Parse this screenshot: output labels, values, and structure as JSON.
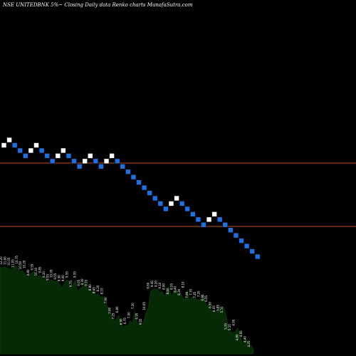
{
  "header": {
    "title": "NSE UNITEDBNK 5%~ Closing Daily data Renko charts MunafaSutra.com"
  },
  "chart_data": {
    "type": "renko",
    "y_scale": "log",
    "price_range": [
      6.0,
      11.5
    ],
    "colors": {
      "up_brick": "#ffffff",
      "down_brick": "#1e6fe0",
      "brick_border": "#000000",
      "level_line": "#c0521f",
      "volume_fill": "#062906",
      "volume_edge": "#0d4a0d",
      "background": "#000000"
    },
    "bricks": [
      {
        "dir": "up",
        "close": 10.85
      },
      {
        "dir": "up",
        "close": 11.4
      },
      {
        "dir": "down",
        "close": 10.85
      },
      {
        "dir": "down",
        "close": 10.3
      },
      {
        "dir": "down",
        "close": 9.8
      },
      {
        "dir": "up",
        "close": 10.3
      },
      {
        "dir": "up",
        "close": 10.85
      },
      {
        "dir": "down",
        "close": 10.3
      },
      {
        "dir": "down",
        "close": 9.8
      },
      {
        "dir": "down",
        "close": 9.3
      },
      {
        "dir": "up",
        "close": 9.8
      },
      {
        "dir": "up",
        "close": 10.3
      },
      {
        "dir": "down",
        "close": 9.8
      },
      {
        "dir": "down",
        "close": 9.3
      },
      {
        "dir": "down",
        "close": 8.85
      },
      {
        "dir": "up",
        "close": 9.3
      },
      {
        "dir": "up",
        "close": 9.8
      },
      {
        "dir": "down",
        "close": 9.3
      },
      {
        "dir": "down",
        "close": 8.85
      },
      {
        "dir": "up",
        "close": 9.3
      },
      {
        "dir": "up",
        "close": 9.8
      },
      {
        "dir": "down",
        "close": 9.3
      },
      {
        "dir": "down",
        "close": 8.85
      },
      {
        "dir": "down",
        "close": 8.4
      },
      {
        "dir": "down",
        "close": 8.0
      },
      {
        "dir": "down",
        "close": 7.6
      },
      {
        "dir": "down",
        "close": 7.2
      },
      {
        "dir": "down",
        "close": 6.85
      },
      {
        "dir": "down",
        "close": 6.5
      },
      {
        "dir": "down",
        "close": 6.2
      },
      {
        "dir": "down",
        "close": 5.9
      },
      {
        "dir": "up",
        "close": 6.2
      },
      {
        "dir": "up",
        "close": 6.5
      },
      {
        "dir": "down",
        "close": 6.2
      },
      {
        "dir": "down",
        "close": 5.9
      },
      {
        "dir": "down",
        "close": 5.6
      },
      {
        "dir": "down",
        "close": 5.35
      },
      {
        "dir": "down",
        "close": 5.1
      },
      {
        "dir": "up",
        "close": 5.35
      },
      {
        "dir": "up",
        "close": 5.6
      },
      {
        "dir": "down",
        "close": 5.35
      },
      {
        "dir": "down",
        "close": 5.1
      },
      {
        "dir": "down",
        "close": 4.85
      },
      {
        "dir": "down",
        "close": 4.6
      },
      {
        "dir": "down",
        "close": 4.4
      },
      {
        "dir": "down",
        "close": 4.2
      },
      {
        "dir": "down",
        "close": 4.0
      },
      {
        "dir": "down",
        "close": 3.8
      }
    ],
    "horizontal_lines": [
      {
        "price": 9.4
      },
      {
        "price": 5.8
      }
    ],
    "volume_series": [
      0.94,
      0.93,
      0.94,
      0.93,
      0.92,
      0.91,
      0.94,
      0.95,
      0.92,
      0.89,
      0.9,
      0.86,
      0.82,
      0.86,
      0.88,
      0.89,
      0.82,
      0.85,
      0.84,
      0.8,
      0.84,
      0.77,
      0.8,
      0.8,
      0.78,
      0.79,
      0.76,
      0.71,
      0.76,
      0.8,
      0.79,
      0.7,
      0.75,
      0.8,
      0.66,
      0.71,
      0.72,
      0.79,
      0.71,
      0.72,
      0.66,
      0.69,
      0.63,
      0.65,
      0.61,
      0.62,
      0.55,
      0.52,
      0.46,
      0.41,
      0.35,
      0.38,
      0.42,
      0.33,
      0.29,
      0.31,
      0.3,
      0.36,
      0.33,
      0.46,
      0.31,
      0.35,
      0.29,
      0.36,
      0.45,
      0.5,
      0.68,
      0.69,
      0.7,
      0.7,
      0.66,
      0.68,
      0.62,
      0.67,
      0.73,
      0.62,
      0.67,
      0.7,
      0.64,
      0.66,
      0.61,
      0.58,
      0.69,
      0.58,
      0.61,
      0.61,
      0.59,
      0.58,
      0.59,
      0.65,
      0.55,
      0.52,
      0.54,
      0.42,
      0.47,
      0.43,
      0.52,
      0.44,
      0.51,
      0.42,
      0.3,
      0.24,
      0.23,
      0.24,
      0.28,
      0.23,
      0.12,
      0.14,
      0.16,
      0.1,
      0.09,
      0.05
    ],
    "volume_labels": [
      "12.20",
      "11.60",
      "11.05",
      "11.05",
      "10.75",
      "10.50",
      "10.20",
      "9.80",
      "9.55",
      "10.10",
      "9.85",
      "9.20",
      "9.55",
      "10.05",
      "9.55",
      "9.30",
      "9.00",
      "9.55",
      "9.75",
      "9.55",
      "9.05",
      "9.30",
      "9.10",
      "8.80",
      "8.45",
      "8.20",
      "8.10",
      "7.90",
      "7.60",
      "7.25",
      "6.80",
      "6.90",
      "6.75",
      "7.00",
      "7.20",
      "6.95",
      "9.05",
      "10.05",
      "9.60",
      "9.40",
      "9.20",
      "9.10",
      "8.90",
      "8.60",
      "8.55",
      "8.40",
      "8.30",
      "8.10",
      "7.90",
      "7.70",
      "7.45",
      "7.20",
      "6.90",
      "6.55",
      "6.30",
      "6.05",
      "5.85",
      "5.50",
      "5.35",
      "5.10",
      "4.95",
      "4.80",
      "4.60",
      "4.40",
      "4.25"
    ]
  }
}
